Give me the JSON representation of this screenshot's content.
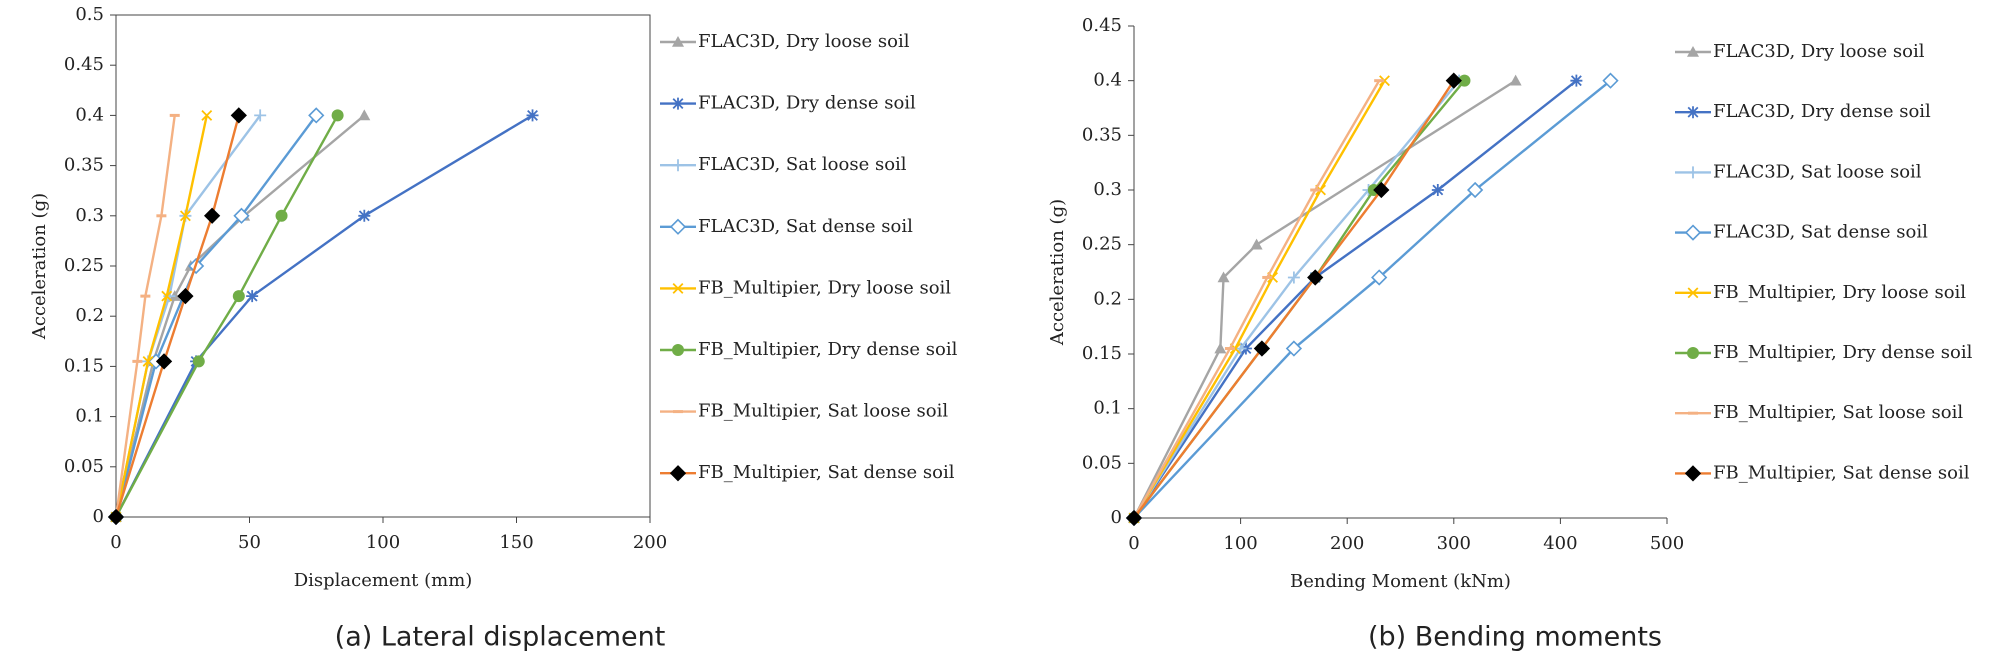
{
  "chart_data": [
    {
      "type": "line",
      "caption": "(a) Lateral displacement",
      "xlabel": "Displacement (mm)",
      "ylabel": "Acceleration (g)",
      "xlim": [
        0,
        200
      ],
      "xticks": [
        0,
        50,
        100,
        150,
        200
      ],
      "ylim": [
        0,
        0.5
      ],
      "yticks": [
        0,
        0.05,
        0.1,
        0.15,
        0.2,
        0.25,
        0.3,
        0.35,
        0.4,
        0.45,
        0.5
      ],
      "frame": true,
      "series": [
        {
          "name": "FLAC3D, Dry loose soil",
          "color": "#a5a5a5",
          "marker": "triangle",
          "x": [
            0,
            14,
            22,
            28,
            48,
            93
          ],
          "values": [
            0,
            0.155,
            0.22,
            0.25,
            0.3,
            0.4
          ]
        },
        {
          "name": "FLAC3D, Dry dense soil",
          "color": "#4472c4",
          "marker": "asterisk",
          "x": [
            0,
            30,
            51,
            93,
            156
          ],
          "values": [
            0,
            0.155,
            0.22,
            0.3,
            0.4
          ]
        },
        {
          "name": "FLAC3D, Sat loose soil",
          "color": "#9dc3e6",
          "marker": "plus",
          "x": [
            0,
            12,
            20,
            26,
            54
          ],
          "values": [
            0,
            0.155,
            0.22,
            0.3,
            0.4
          ]
        },
        {
          "name": "FLAC3D, Sat dense soil",
          "color": "#5b9bd5",
          "marker": "diamond-open",
          "x": [
            0,
            15,
            30,
            47,
            75
          ],
          "values": [
            0,
            0.155,
            0.25,
            0.3,
            0.4
          ]
        },
        {
          "name": "FB_Multipier, Dry loose soil",
          "color": "#ffc000",
          "marker": "x",
          "x": [
            0,
            12,
            19,
            26,
            34
          ],
          "values": [
            0,
            0.155,
            0.22,
            0.3,
            0.4
          ]
        },
        {
          "name": "FB_Multipier, Dry dense soil",
          "color": "#70ad47",
          "marker": "circle",
          "x": [
            0,
            31,
            46,
            62,
            83
          ],
          "values": [
            0,
            0.155,
            0.22,
            0.3,
            0.4
          ]
        },
        {
          "name": "FB_Multipier, Sat loose soil",
          "color": "#f4b183",
          "marker": "dash",
          "x": [
            0,
            8,
            11,
            17,
            22
          ],
          "values": [
            0,
            0.155,
            0.22,
            0.3,
            0.4
          ]
        },
        {
          "name": "FB_Multipier, Sat dense soil",
          "color": "#ed7d31",
          "marker": "diamond",
          "marker_color": "#000000",
          "x": [
            0,
            18,
            26,
            36,
            46
          ],
          "values": [
            0,
            0.155,
            0.22,
            0.3,
            0.4
          ]
        }
      ]
    },
    {
      "type": "line",
      "caption": "(b) Bending moments",
      "xlabel": "Bending Moment (kNm)",
      "ylabel": "Acceleration (g)",
      "xlim": [
        0,
        500
      ],
      "xticks": [
        0,
        100,
        200,
        300,
        400,
        500
      ],
      "ylim": [
        0,
        0.45
      ],
      "yticks": [
        0,
        0.05,
        0.1,
        0.15,
        0.2,
        0.25,
        0.3,
        0.35,
        0.4,
        0.45
      ],
      "frame": false,
      "series": [
        {
          "name": "FLAC3D, Dry loose soil",
          "color": "#a5a5a5",
          "marker": "triangle",
          "x": [
            0,
            81,
            84,
            115,
            358
          ],
          "values": [
            0,
            0.155,
            0.22,
            0.25,
            0.4
          ]
        },
        {
          "name": "FLAC3D, Dry dense soil",
          "color": "#4472c4",
          "marker": "asterisk",
          "x": [
            0,
            105,
            170,
            285,
            415
          ],
          "values": [
            0,
            0.155,
            0.22,
            0.3,
            0.4
          ]
        },
        {
          "name": "FLAC3D, Sat loose soil",
          "color": "#9dc3e6",
          "marker": "plus",
          "x": [
            0,
            100,
            150,
            220,
            305
          ],
          "values": [
            0,
            0.155,
            0.22,
            0.3,
            0.4
          ]
        },
        {
          "name": "FLAC3D, Sat dense soil",
          "color": "#5b9bd5",
          "marker": "diamond-open",
          "x": [
            0,
            150,
            230,
            320,
            447
          ],
          "values": [
            0,
            0.155,
            0.22,
            0.3,
            0.4
          ]
        },
        {
          "name": "FB_Multipier, Dry loose soil",
          "color": "#ffc000",
          "marker": "x",
          "x": [
            0,
            95,
            130,
            175,
            235
          ],
          "values": [
            0,
            0.155,
            0.22,
            0.3,
            0.4
          ]
        },
        {
          "name": "FB_Multipier, Dry dense soil",
          "color": "#70ad47",
          "marker": "circle",
          "x": [
            0,
            120,
            170,
            225,
            310
          ],
          "values": [
            0,
            0.155,
            0.22,
            0.3,
            0.4
          ]
        },
        {
          "name": "FB_Multipier, Sat loose soil",
          "color": "#f4b183",
          "marker": "dash",
          "x": [
            0,
            90,
            125,
            170,
            230
          ],
          "values": [
            0,
            0.155,
            0.22,
            0.3,
            0.4
          ]
        },
        {
          "name": "FB_Multipier, Sat dense soil",
          "color": "#ed7d31",
          "marker": "diamond",
          "marker_color": "#000000",
          "x": [
            0,
            120,
            170,
            232,
            300
          ],
          "values": [
            0,
            0.155,
            0.22,
            0.3,
            0.4
          ]
        }
      ]
    }
  ]
}
